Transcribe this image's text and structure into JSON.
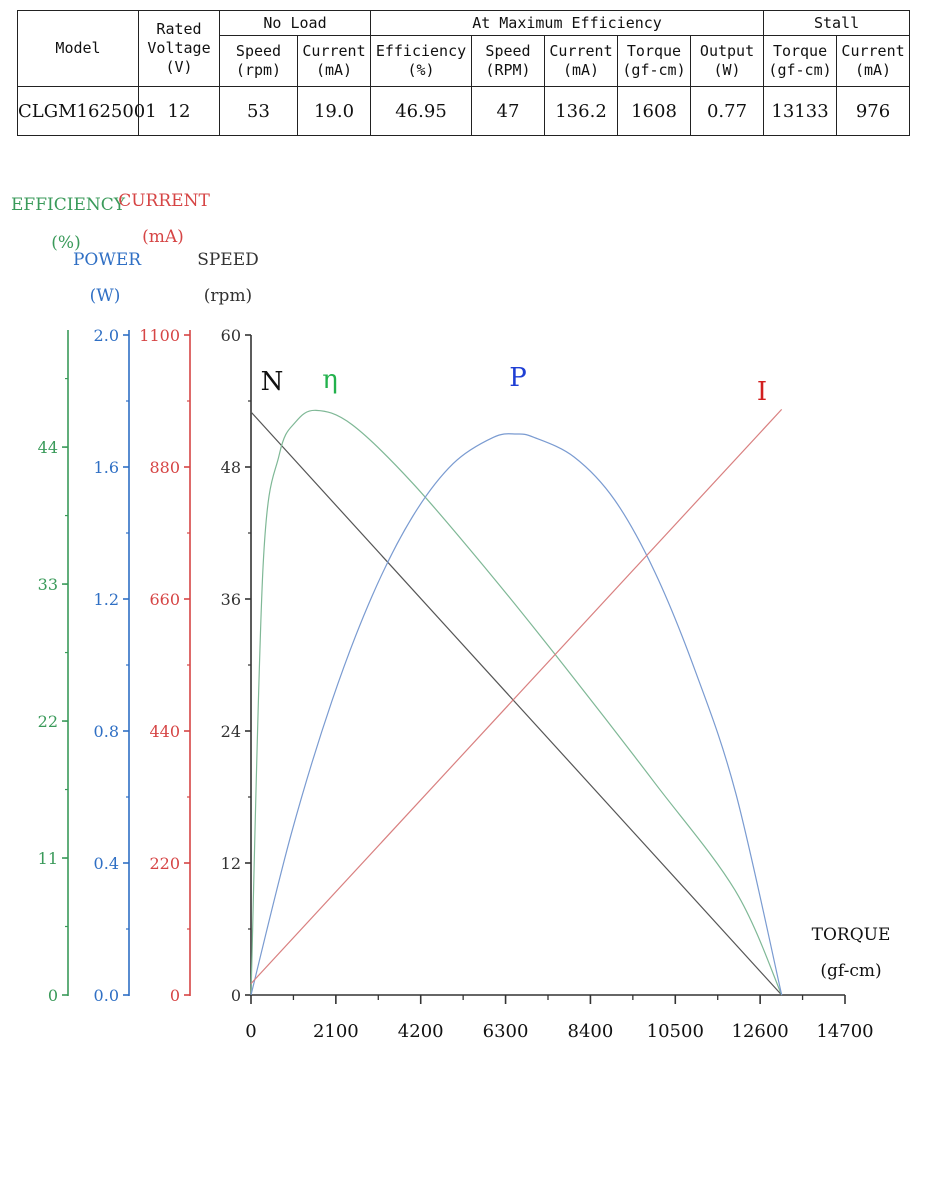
{
  "table": {
    "group_headers": {
      "model": "Model",
      "rated_voltage": [
        "Rated",
        "Voltage",
        "(V)"
      ],
      "no_load": "No Load",
      "max_eff": "At Maximum Efficiency",
      "stall": "Stall"
    },
    "sub_headers": [
      {
        "l1": "Speed",
        "l2": "(rpm)"
      },
      {
        "l1": "Current",
        "l2": "(mA)"
      },
      {
        "l1": "Efficiency",
        "l2": "(%)"
      },
      {
        "l1": "Speed",
        "l2": "(RPM)"
      },
      {
        "l1": "Current",
        "l2": "(mA)"
      },
      {
        "l1": "Torque",
        "l2": "(gf-cm)"
      },
      {
        "l1": "Output",
        "l2": "(W)"
      },
      {
        "l1": "Torque",
        "l2": "(gf-cm)"
      },
      {
        "l1": "Current",
        "l2": "(mA)"
      }
    ],
    "row": [
      "CLGM1625001",
      "12",
      "53",
      "19.0",
      "46.95",
      "47",
      "136.2",
      "1608",
      "0.77",
      "13133",
      "976"
    ]
  },
  "chart_data": {
    "type": "line",
    "x_axis": {
      "label": "TORQUE",
      "unit": "(gf-cm)",
      "range": [
        0,
        14700
      ],
      "ticks": [
        "0",
        "2100",
        "4200",
        "6300",
        "8400",
        "10500",
        "12600",
        "14700"
      ]
    },
    "y_axes": [
      {
        "key": "efficiency",
        "label": "EFFICIENCY",
        "unit": "(%)",
        "color": "#3a9a5a",
        "range": [
          0,
          53
        ],
        "ticks": [
          "0",
          "11",
          "22",
          "33",
          "44"
        ]
      },
      {
        "key": "power",
        "label": "POWER",
        "unit": "(W)",
        "color": "#2f6fc4",
        "range": [
          0,
          2.0
        ],
        "ticks": [
          "0.0",
          "0.4",
          "0.8",
          "1.2",
          "1.6",
          "2.0"
        ]
      },
      {
        "key": "current",
        "label": "CURRENT",
        "unit": "(mA)",
        "color": "#d64545",
        "range": [
          0,
          1100
        ],
        "ticks": [
          "0",
          "220",
          "440",
          "660",
          "880",
          "1100"
        ]
      },
      {
        "key": "speed",
        "label": "SPEED",
        "unit": "(rpm)",
        "color": "#333333",
        "range": [
          0,
          60
        ],
        "ticks": [
          "0",
          "12",
          "24",
          "36",
          "48",
          "60"
        ]
      }
    ],
    "series": [
      {
        "name": "N",
        "axis": "speed",
        "color": "#555555",
        "label_color": "#111111",
        "x": [
          0,
          13133
        ],
        "y": [
          53,
          0
        ]
      },
      {
        "name": "η",
        "axis": "efficiency",
        "color": "#7fb896",
        "label_color": "#22b14c",
        "x": [
          0,
          300,
          700,
          1100,
          1608,
          2500,
          4000,
          6000,
          8000,
          10000,
          12000,
          13133
        ],
        "y": [
          0,
          34.5,
          43.4,
          46.0,
          46.95,
          45.8,
          41.1,
          33.5,
          25.4,
          17.0,
          8.3,
          0
        ]
      },
      {
        "name": "P",
        "axis": "power",
        "color": "#7a9bd1",
        "label_color": "#1f3fd4",
        "x": [
          0,
          1000,
          2000,
          3000,
          4000,
          5000,
          6000,
          6566,
          7000,
          8000,
          9000,
          10000,
          11000,
          12000,
          13133
        ],
        "y": [
          0,
          0.49,
          0.89,
          1.21,
          1.45,
          1.61,
          1.69,
          1.7,
          1.69,
          1.63,
          1.5,
          1.28,
          0.98,
          0.61,
          0
        ]
      },
      {
        "name": "I",
        "axis": "current",
        "color": "#d98080",
        "label_color": "#d21f1f",
        "x": [
          0,
          13133
        ],
        "y": [
          19,
          976
        ]
      }
    ]
  }
}
